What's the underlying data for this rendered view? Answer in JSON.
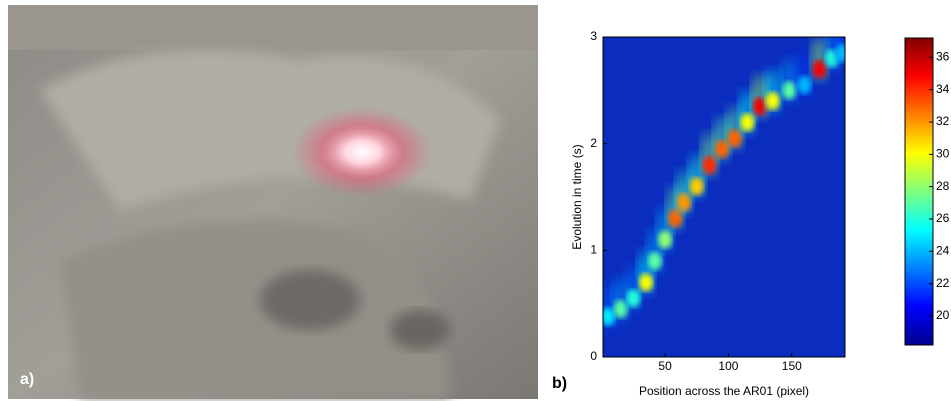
{
  "panels": {
    "a": "a)",
    "b": "b)"
  },
  "chart_data": {
    "type": "heatmap",
    "xlabel": "Position across the AR01 (pixel)",
    "ylabel": "Evolution in time (s)",
    "xlim": [
      1,
      192
    ],
    "xticks": [
      50,
      100,
      150
    ],
    "ylim": [
      0,
      3
    ],
    "yticks": [
      0,
      1,
      2,
      3
    ],
    "x": [
      5,
      15,
      25,
      35,
      42,
      50,
      58,
      65,
      75,
      85,
      95,
      105,
      115,
      125,
      135,
      148,
      160,
      172,
      182,
      190
    ],
    "y": [
      0.38,
      0.45,
      0.55,
      0.7,
      0.9,
      1.1,
      1.3,
      1.45,
      1.6,
      1.8,
      1.95,
      2.05,
      2.2,
      2.35,
      2.4,
      2.5,
      2.55,
      2.7,
      2.8,
      2.85
    ],
    "values": [
      25,
      27,
      26,
      30,
      27,
      28,
      33,
      32,
      31,
      34,
      33,
      33,
      30,
      35,
      30,
      27,
      24,
      35,
      26,
      24
    ],
    "colorbar": {
      "ylim": [
        18.2,
        37.2
      ],
      "yticks": [
        20,
        22,
        24,
        26,
        28,
        30,
        32,
        34,
        36
      ]
    }
  }
}
